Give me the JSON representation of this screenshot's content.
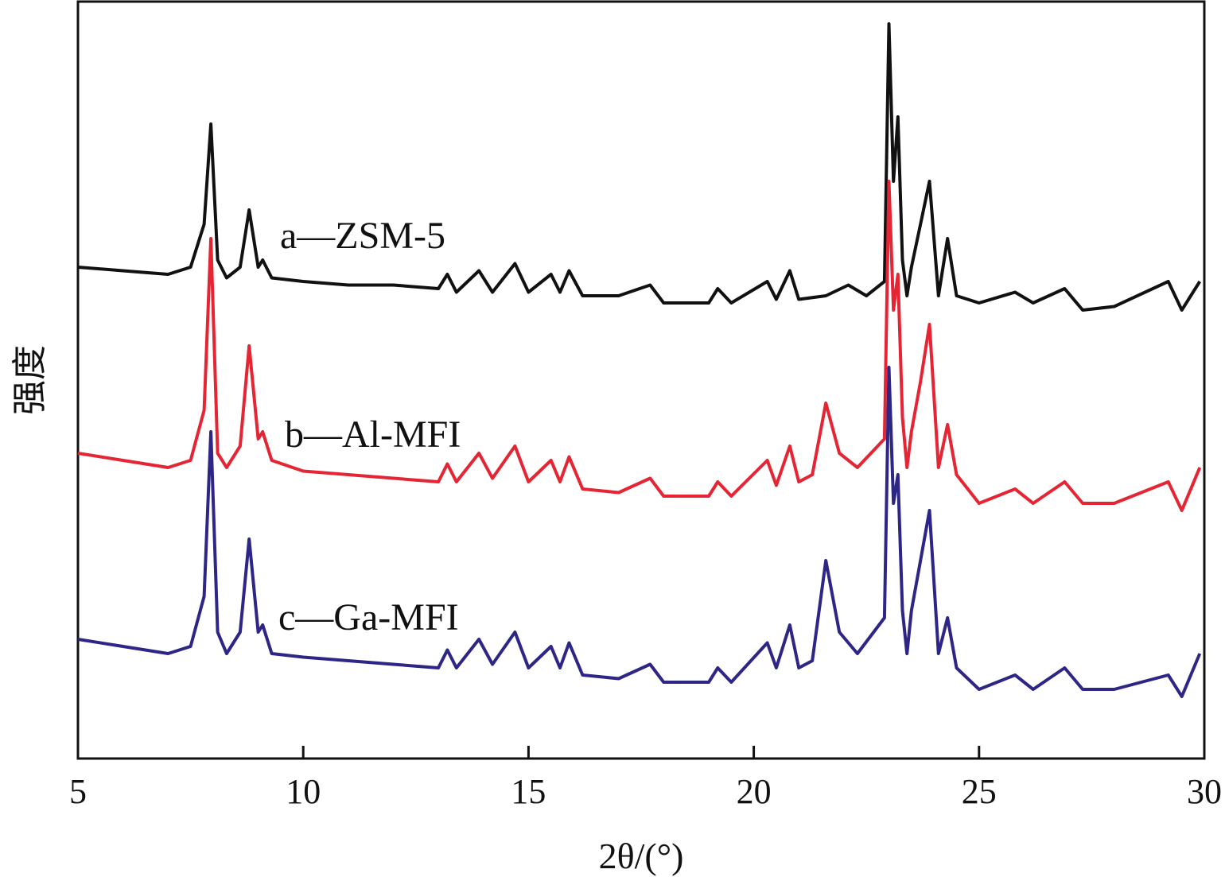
{
  "chart_data": {
    "type": "line",
    "title": "",
    "xlabel": "2θ/(°)",
    "ylabel": "强度",
    "xlim": [
      5,
      30
    ],
    "xticks": [
      5,
      10,
      15,
      20,
      25,
      30
    ],
    "xtick_labels": [
      "5",
      "10",
      "15",
      "20",
      "25",
      "30"
    ],
    "yticks_shown": false,
    "grid": false,
    "legend": "none",
    "series": [
      {
        "name": "a—ZSM-5",
        "color": "#111111",
        "x": [
          5.0,
          6.0,
          7.0,
          7.5,
          7.8,
          7.95,
          8.1,
          8.3,
          8.6,
          8.8,
          9.0,
          9.1,
          9.3,
          10.0,
          11.0,
          12.0,
          13.0,
          13.2,
          13.4,
          13.9,
          14.2,
          14.7,
          15.0,
          15.5,
          15.7,
          15.9,
          16.2,
          17.0,
          17.7,
          18.0,
          19.0,
          19.2,
          19.5,
          20.3,
          20.5,
          20.8,
          21.0,
          21.6,
          22.1,
          22.5,
          22.9,
          23.0,
          23.1,
          23.2,
          23.3,
          23.4,
          23.5,
          23.7,
          23.9,
          24.1,
          24.3,
          24.5,
          25.0,
          25.8,
          26.2,
          26.9,
          27.3,
          28.0,
          29.2,
          29.5,
          29.9
        ],
        "y": [
          0.66,
          0.655,
          0.65,
          0.66,
          0.72,
          0.86,
          0.67,
          0.645,
          0.66,
          0.74,
          0.66,
          0.67,
          0.645,
          0.64,
          0.635,
          0.635,
          0.63,
          0.65,
          0.625,
          0.655,
          0.625,
          0.665,
          0.625,
          0.65,
          0.625,
          0.655,
          0.62,
          0.62,
          0.635,
          0.61,
          0.61,
          0.63,
          0.61,
          0.64,
          0.615,
          0.655,
          0.615,
          0.62,
          0.635,
          0.62,
          0.64,
          1.0,
          0.78,
          0.87,
          0.67,
          0.62,
          0.66,
          0.72,
          0.78,
          0.62,
          0.7,
          0.62,
          0.61,
          0.625,
          0.61,
          0.63,
          0.6,
          0.605,
          0.64,
          0.6,
          0.64
        ]
      },
      {
        "name": "b—Al-MFI",
        "color": "#e52533",
        "x": [
          5.0,
          6.0,
          7.0,
          7.5,
          7.8,
          7.95,
          8.1,
          8.3,
          8.6,
          8.8,
          9.0,
          9.1,
          9.3,
          10.0,
          11.0,
          12.0,
          13.0,
          13.2,
          13.4,
          13.9,
          14.2,
          14.7,
          15.0,
          15.5,
          15.7,
          15.9,
          16.2,
          17.0,
          17.7,
          18.0,
          19.0,
          19.2,
          19.5,
          20.3,
          20.5,
          20.8,
          21.0,
          21.3,
          21.6,
          21.9,
          22.3,
          22.9,
          23.0,
          23.1,
          23.2,
          23.3,
          23.4,
          23.5,
          23.7,
          23.9,
          24.1,
          24.3,
          24.5,
          25.0,
          25.8,
          26.2,
          26.9,
          27.3,
          28.0,
          29.2,
          29.5,
          29.9
        ],
        "y": [
          0.4,
          0.39,
          0.38,
          0.39,
          0.46,
          0.7,
          0.4,
          0.38,
          0.41,
          0.55,
          0.42,
          0.43,
          0.39,
          0.375,
          0.37,
          0.365,
          0.36,
          0.385,
          0.36,
          0.4,
          0.365,
          0.41,
          0.36,
          0.39,
          0.36,
          0.395,
          0.35,
          0.345,
          0.365,
          0.34,
          0.34,
          0.36,
          0.34,
          0.39,
          0.355,
          0.41,
          0.36,
          0.37,
          0.47,
          0.4,
          0.38,
          0.42,
          0.78,
          0.6,
          0.65,
          0.45,
          0.38,
          0.43,
          0.5,
          0.58,
          0.38,
          0.44,
          0.37,
          0.33,
          0.35,
          0.33,
          0.36,
          0.33,
          0.33,
          0.36,
          0.32,
          0.38
        ]
      },
      {
        "name": "c—Ga-MFI",
        "color": "#2e2686",
        "x": [
          5.0,
          6.0,
          7.0,
          7.5,
          7.8,
          7.95,
          8.1,
          8.3,
          8.6,
          8.8,
          9.0,
          9.1,
          9.3,
          10.0,
          11.0,
          12.0,
          13.0,
          13.2,
          13.4,
          13.9,
          14.2,
          14.7,
          15.0,
          15.5,
          15.7,
          15.9,
          16.2,
          17.0,
          17.7,
          18.0,
          19.0,
          19.2,
          19.5,
          20.3,
          20.5,
          20.8,
          21.0,
          21.3,
          21.6,
          21.9,
          22.3,
          22.9,
          23.0,
          23.1,
          23.2,
          23.3,
          23.4,
          23.5,
          23.7,
          23.9,
          24.1,
          24.3,
          24.5,
          25.0,
          25.8,
          26.2,
          26.9,
          27.3,
          28.0,
          29.2,
          29.5,
          29.9
        ],
        "y": [
          0.14,
          0.13,
          0.12,
          0.13,
          0.2,
          0.43,
          0.15,
          0.12,
          0.15,
          0.28,
          0.15,
          0.16,
          0.12,
          0.115,
          0.11,
          0.105,
          0.1,
          0.125,
          0.1,
          0.14,
          0.105,
          0.15,
          0.1,
          0.13,
          0.1,
          0.135,
          0.09,
          0.085,
          0.105,
          0.08,
          0.08,
          0.1,
          0.08,
          0.135,
          0.1,
          0.16,
          0.1,
          0.11,
          0.25,
          0.15,
          0.12,
          0.17,
          0.52,
          0.33,
          0.37,
          0.18,
          0.12,
          0.18,
          0.25,
          0.32,
          0.12,
          0.17,
          0.1,
          0.07,
          0.09,
          0.07,
          0.1,
          0.07,
          0.07,
          0.09,
          0.06,
          0.12
        ]
      }
    ]
  }
}
